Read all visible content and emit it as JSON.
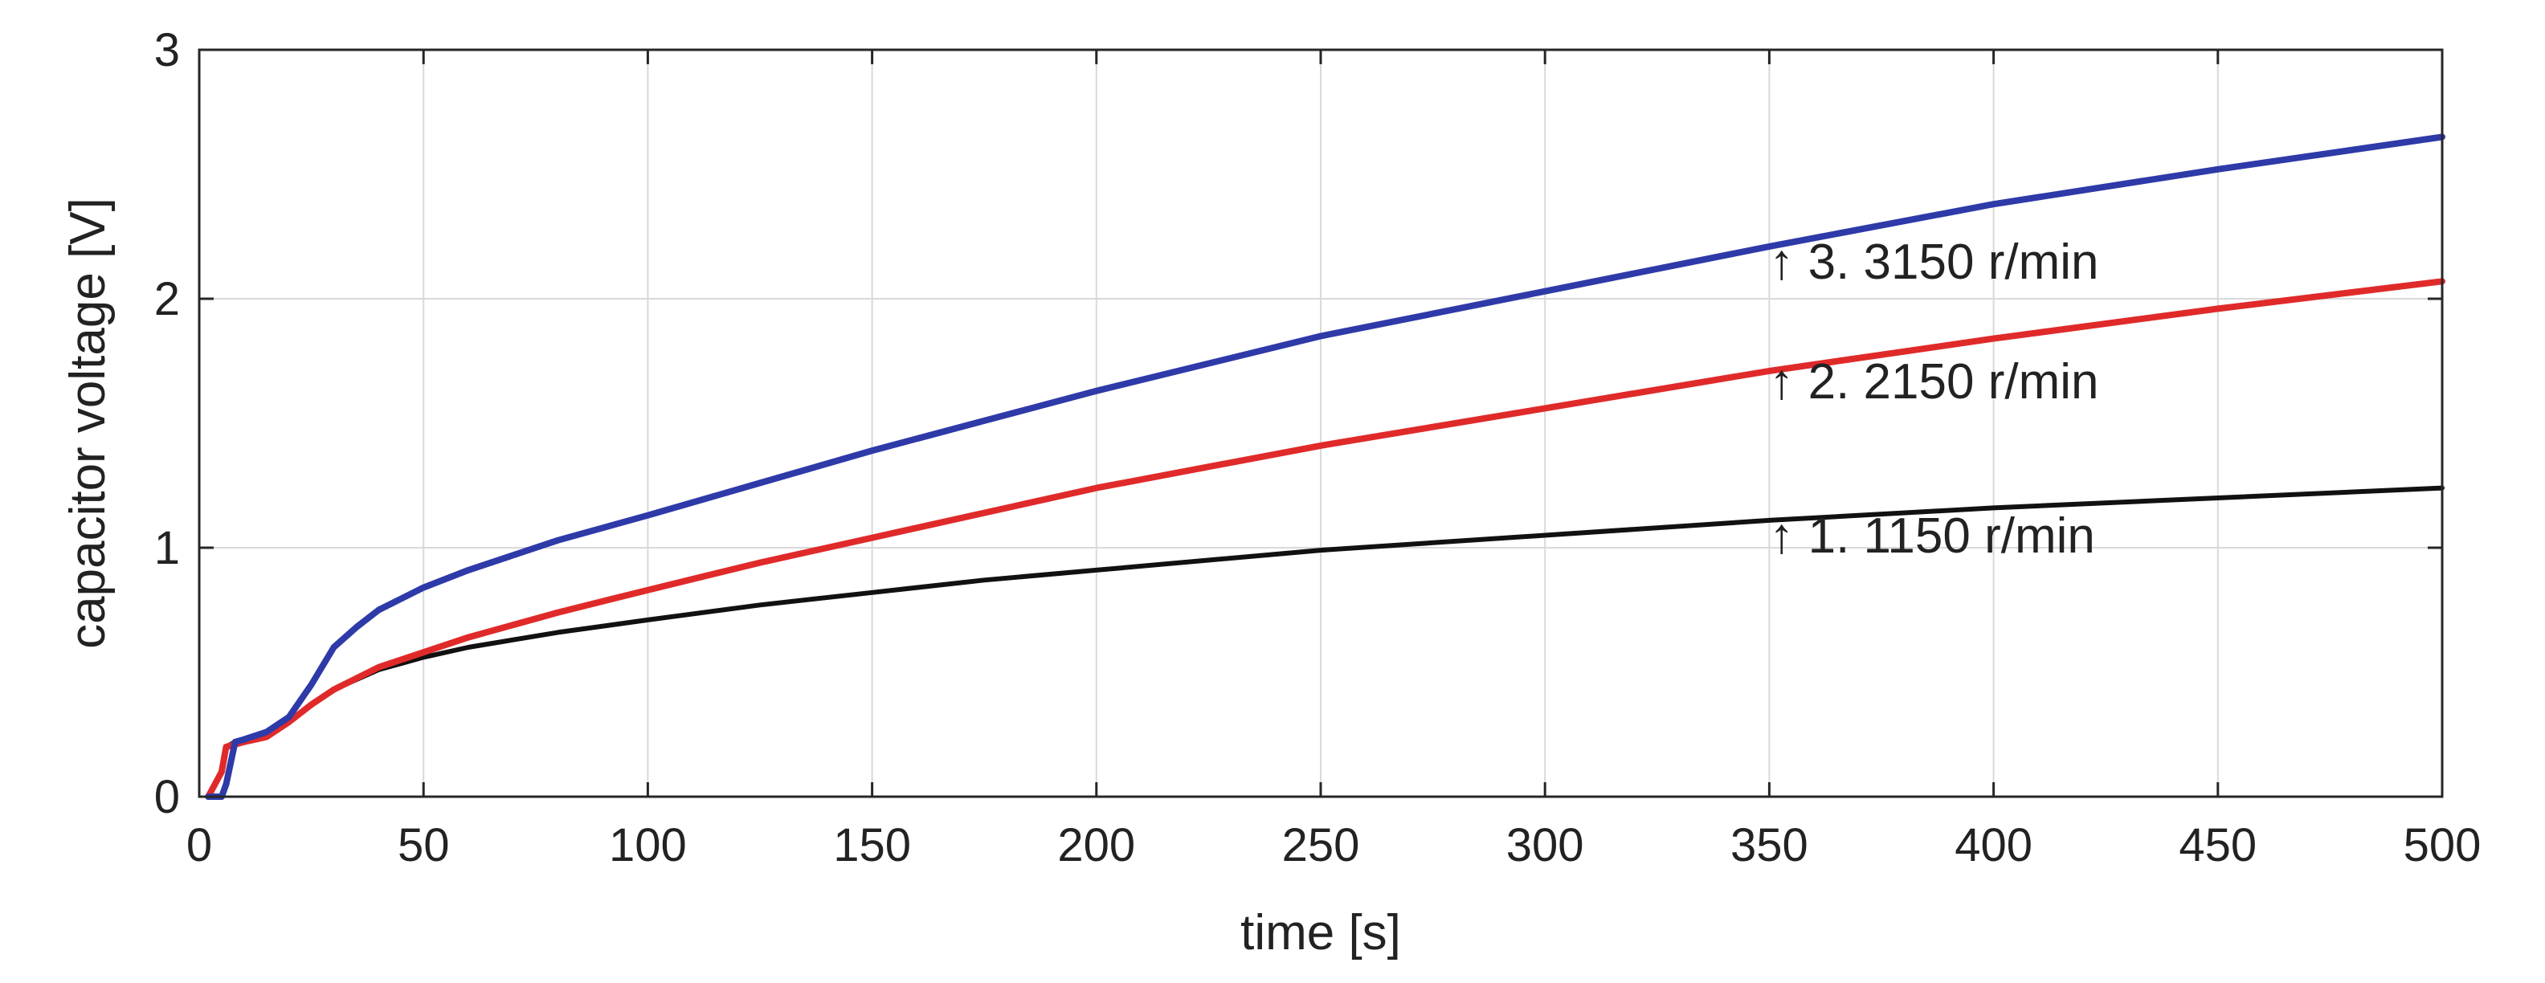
{
  "chart_data": {
    "type": "line",
    "title": "",
    "xlabel": "time [s]",
    "ylabel": "capacitor voltage [V]",
    "xlim": [
      0,
      500
    ],
    "ylim": [
      0,
      3
    ],
    "xticks": [
      0,
      50,
      100,
      150,
      200,
      250,
      300,
      350,
      400,
      450,
      500
    ],
    "yticks": [
      0,
      1,
      2,
      3
    ],
    "xtick_labels": [
      "0",
      "50",
      "100",
      "150",
      "200",
      "250",
      "300",
      "350",
      "400",
      "450",
      "500"
    ],
    "ytick_labels": [
      "0",
      "1",
      "2",
      "3"
    ],
    "grid": true,
    "series": [
      {
        "name": "1. 1150 r/min",
        "color": "#111111",
        "x": [
          2,
          5,
          6,
          8,
          10,
          15,
          20,
          25,
          30,
          40,
          50,
          60,
          80,
          100,
          125,
          150,
          175,
          200,
          250,
          300,
          350,
          400,
          450,
          500
        ],
        "y": [
          0.0,
          0.1,
          0.2,
          0.22,
          0.23,
          0.25,
          0.3,
          0.37,
          0.43,
          0.51,
          0.56,
          0.6,
          0.66,
          0.71,
          0.77,
          0.82,
          0.87,
          0.91,
          0.99,
          1.05,
          1.11,
          1.16,
          1.2,
          1.24
        ]
      },
      {
        "name": "2. 2150 r/min",
        "color": "#e02a2a",
        "x": [
          2,
          5,
          6,
          8,
          10,
          15,
          20,
          25,
          30,
          40,
          50,
          60,
          80,
          100,
          125,
          150,
          175,
          200,
          250,
          300,
          350,
          400,
          450,
          500
        ],
        "y": [
          0.0,
          0.1,
          0.2,
          0.21,
          0.22,
          0.24,
          0.3,
          0.37,
          0.43,
          0.52,
          0.58,
          0.64,
          0.74,
          0.83,
          0.94,
          1.04,
          1.14,
          1.24,
          1.41,
          1.56,
          1.71,
          1.84,
          1.96,
          2.07
        ]
      },
      {
        "name": "3. 3150 r/min",
        "color": "#2e3aa8",
        "x": [
          2,
          5,
          6,
          8,
          10,
          15,
          20,
          25,
          30,
          35,
          40,
          50,
          60,
          80,
          100,
          125,
          150,
          175,
          200,
          250,
          300,
          350,
          400,
          450,
          500
        ],
        "y": [
          0.0,
          0.0,
          0.05,
          0.22,
          0.23,
          0.26,
          0.32,
          0.45,
          0.6,
          0.68,
          0.75,
          0.84,
          0.91,
          1.03,
          1.13,
          1.26,
          1.39,
          1.51,
          1.63,
          1.85,
          2.03,
          2.21,
          2.38,
          2.52,
          2.65
        ]
      }
    ],
    "annotations": [
      {
        "text": "↑ 3. 3150 r/min",
        "x": 350,
        "y": 2.08
      },
      {
        "text": "↑ 2. 2150 r/min",
        "x": 350,
        "y": 1.6
      },
      {
        "text": "↑ 1. 1150 r/min",
        "x": 350,
        "y": 0.98
      }
    ]
  }
}
